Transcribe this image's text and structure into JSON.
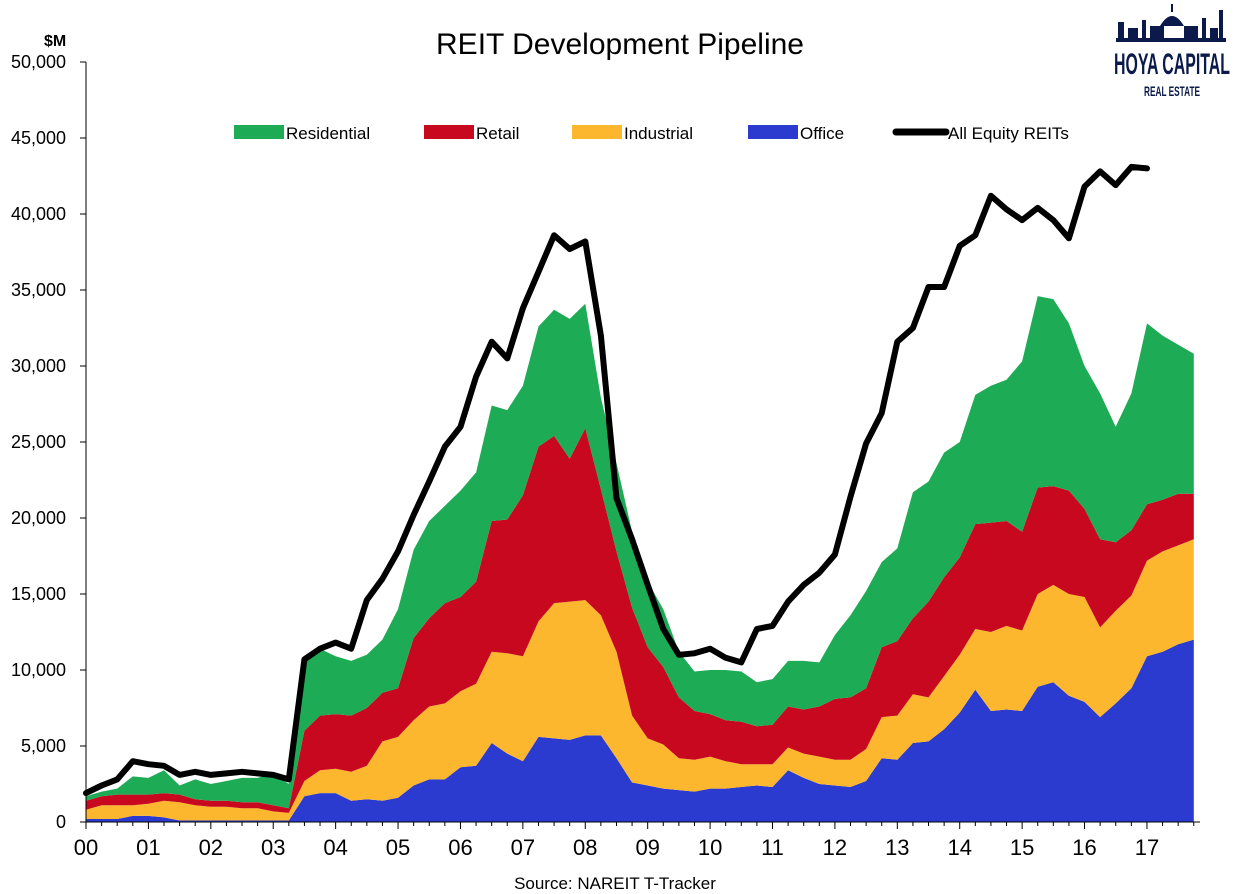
{
  "chart_data": {
    "type": "area",
    "title": "REIT Development Pipeline",
    "unit_label": "$M",
    "source": "Source: NAREIT T-Tracker",
    "ylim": [
      0,
      50000
    ],
    "yticks": [
      0,
      5000,
      10000,
      15000,
      20000,
      25000,
      30000,
      35000,
      40000,
      45000,
      50000
    ],
    "ytick_labels": [
      "0",
      "5,000",
      "10,000",
      "15,000",
      "20,000",
      "25,000",
      "30,000",
      "35,000",
      "40,000",
      "45,000",
      "50,000"
    ],
    "x_labels": [
      "00",
      "01",
      "02",
      "03",
      "04",
      "05",
      "06",
      "07",
      "08",
      "09",
      "10",
      "11",
      "12",
      "13",
      "14",
      "15",
      "16",
      "17"
    ],
    "x_start": 2000.0,
    "x_step": 0.25,
    "legend_position": "top",
    "stacked_series": [
      {
        "name": "Office",
        "color": "#2b3bd0",
        "values": [
          200,
          200,
          200,
          400,
          400,
          300,
          100,
          100,
          100,
          100,
          100,
          100,
          100,
          100,
          1700,
          1900,
          1900,
          1400,
          1500,
          1400,
          1600,
          2400,
          2800,
          2800,
          3600,
          3700,
          5200,
          4500,
          4000,
          5600,
          5500,
          5400,
          5700,
          5700,
          4200,
          2600,
          2400,
          2200,
          2100,
          2000,
          2200,
          2200,
          2300,
          2400,
          2300,
          3400,
          2900,
          2500,
          2400,
          2300,
          2700,
          4200,
          4100,
          5200,
          5300,
          6100,
          7200,
          8700,
          7300,
          7400,
          7300,
          8900,
          9200,
          8300,
          7900,
          6900,
          7800,
          8800,
          10900,
          11200,
          11700,
          12000
        ]
      },
      {
        "name": "Industrial",
        "color": "#fcb72e",
        "values": [
          600,
          900,
          900,
          700,
          800,
          1100,
          1200,
          1000,
          900,
          900,
          800,
          800,
          600,
          500,
          1000,
          1500,
          1600,
          1900,
          2200,
          3900,
          4000,
          4300,
          4800,
          5000,
          5000,
          5400,
          6000,
          6600,
          6900,
          7600,
          8900,
          9100,
          8900,
          7900,
          7000,
          4400,
          3100,
          2900,
          2100,
          2100,
          2100,
          1800,
          1500,
          1400,
          1500,
          1500,
          1600,
          1800,
          1700,
          1800,
          2100,
          2700,
          2900,
          3200,
          2900,
          3500,
          3800,
          4000,
          5200,
          5500,
          5300,
          6100,
          6400,
          6700,
          6900,
          5900,
          6100,
          6100,
          6300,
          6600,
          6500,
          6600
        ]
      },
      {
        "name": "Retail",
        "color": "#c8081f",
        "values": [
          600,
          600,
          700,
          700,
          600,
          500,
          500,
          400,
          400,
          400,
          400,
          400,
          400,
          300,
          3300,
          3600,
          3600,
          3700,
          3800,
          3200,
          3200,
          5400,
          5800,
          6600,
          6200,
          6700,
          8600,
          8800,
          10600,
          11500,
          11000,
          9400,
          11300,
          8300,
          6600,
          7100,
          6000,
          5100,
          4000,
          3200,
          2800,
          2700,
          2800,
          2500,
          2600,
          2700,
          2900,
          3300,
          4000,
          4100,
          4000,
          4600,
          4900,
          5000,
          6300,
          6500,
          6400,
          6900,
          7200,
          6900,
          6500,
          7000,
          6500,
          6800,
          5800,
          5800,
          4500,
          4300,
          3700,
          3400,
          3400,
          3000
        ]
      },
      {
        "name": "Residential",
        "color": "#1dab55",
        "values": [
          300,
          300,
          400,
          1200,
          1100,
          1500,
          600,
          1300,
          1100,
          1300,
          1600,
          1600,
          2100,
          1600,
          4600,
          4400,
          3800,
          3600,
          3500,
          3500,
          5200,
          5800,
          6400,
          6400,
          7000,
          7200,
          7600,
          7200,
          7200,
          7900,
          8300,
          9200,
          8200,
          6000,
          5800,
          5000,
          4300,
          3800,
          3000,
          2600,
          2900,
          3300,
          3300,
          2900,
          3000,
          3000,
          3200,
          2900,
          4200,
          5400,
          6400,
          5600,
          6100,
          8300,
          7900,
          8200,
          7600,
          8500,
          9000,
          9300,
          11200,
          12600,
          12300,
          11000,
          9400,
          9600,
          7600,
          9000,
          11900,
          10800,
          9800,
          9200
        ]
      }
    ],
    "total_series": {
      "name": "All Equity REITs",
      "color": "#000000",
      "values": [
        1900,
        2400,
        2800,
        4000,
        3800,
        3700,
        3100,
        3300,
        3100,
        3200,
        3300,
        3200,
        3100,
        2800,
        10700,
        11400,
        11800,
        11400,
        14600,
        16000,
        17800,
        20200,
        22400,
        24700,
        26000,
        29300,
        31600,
        30500,
        33800,
        36200,
        38600,
        37700,
        38200,
        32000,
        21300,
        18600,
        15600,
        12700,
        11000,
        11100,
        11400,
        10800,
        10500,
        12700,
        12900,
        14500,
        15600,
        16400,
        17600,
        21400,
        24900,
        26900,
        31600,
        32500,
        35200,
        35200,
        37900,
        38600,
        41200,
        40300,
        39600,
        40400,
        39600,
        38400,
        41800,
        42800,
        41900,
        43100,
        43000
      ]
    },
    "legend_order": [
      "Residential",
      "Retail",
      "Industrial",
      "Office",
      "All Equity REITs"
    ]
  },
  "logo": {
    "line1": "HOYA CAPITAL",
    "line2": "REAL ESTATE"
  }
}
